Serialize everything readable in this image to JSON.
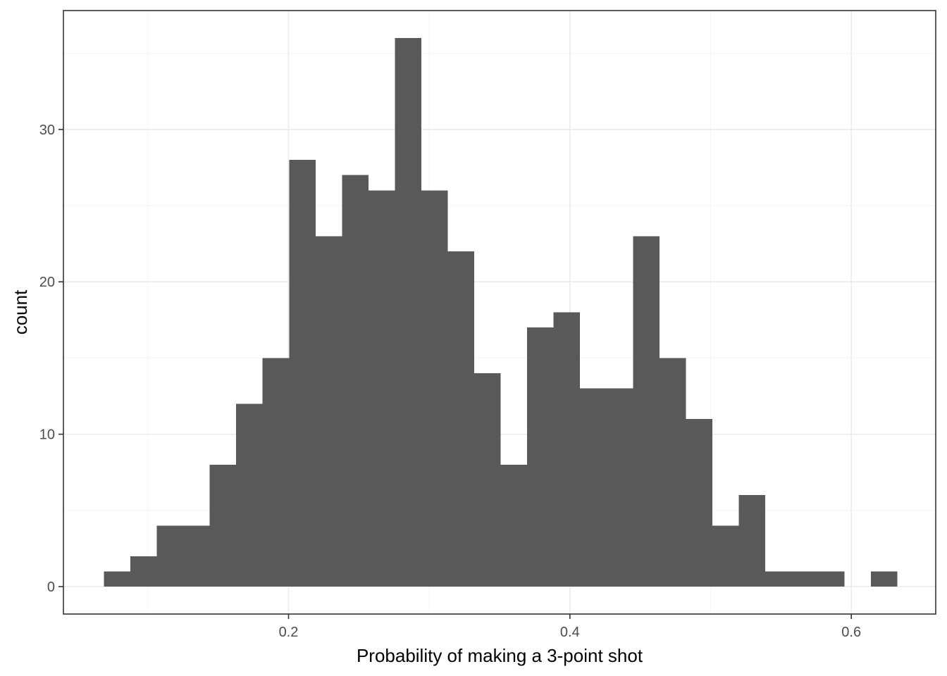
{
  "chart_data": {
    "type": "histogram",
    "title": "",
    "xlabel": "Probability of making a 3-point shot",
    "ylabel": "count",
    "xlim": [
      0.04,
      0.66
    ],
    "ylim": [
      -1.8,
      37.8
    ],
    "x_ticks": [
      {
        "value": 0.2,
        "label": "0.2"
      },
      {
        "value": 0.4,
        "label": "0.4"
      },
      {
        "value": 0.6,
        "label": "0.6"
      }
    ],
    "y_ticks": [
      {
        "value": 0,
        "label": "0"
      },
      {
        "value": 10,
        "label": "10"
      },
      {
        "value": 20,
        "label": "20"
      },
      {
        "value": 30,
        "label": "30"
      }
    ],
    "x_minor_grid": [
      0.1,
      0.3,
      0.5
    ],
    "y_minor_grid": [
      5,
      15,
      25,
      35
    ],
    "grid": true,
    "bin_width": 0.0188,
    "bins": [
      {
        "x0": 0.0688,
        "x1": 0.0876,
        "count": 1
      },
      {
        "x0": 0.0876,
        "x1": 0.1064,
        "count": 2
      },
      {
        "x0": 0.1064,
        "x1": 0.1252,
        "count": 4
      },
      {
        "x0": 0.1252,
        "x1": 0.144,
        "count": 4
      },
      {
        "x0": 0.144,
        "x1": 0.1628,
        "count": 8
      },
      {
        "x0": 0.1628,
        "x1": 0.1816,
        "count": 12
      },
      {
        "x0": 0.1816,
        "x1": 0.2004,
        "count": 15
      },
      {
        "x0": 0.2004,
        "x1": 0.2192,
        "count": 28
      },
      {
        "x0": 0.2192,
        "x1": 0.238,
        "count": 23
      },
      {
        "x0": 0.238,
        "x1": 0.2568,
        "count": 27
      },
      {
        "x0": 0.2568,
        "x1": 0.2756,
        "count": 26
      },
      {
        "x0": 0.2756,
        "x1": 0.2944,
        "count": 36
      },
      {
        "x0": 0.2944,
        "x1": 0.3132,
        "count": 26
      },
      {
        "x0": 0.3132,
        "x1": 0.332,
        "count": 22
      },
      {
        "x0": 0.332,
        "x1": 0.3508,
        "count": 14
      },
      {
        "x0": 0.3508,
        "x1": 0.3696,
        "count": 8
      },
      {
        "x0": 0.3696,
        "x1": 0.3884,
        "count": 17
      },
      {
        "x0": 0.3884,
        "x1": 0.4072,
        "count": 18
      },
      {
        "x0": 0.4072,
        "x1": 0.426,
        "count": 13
      },
      {
        "x0": 0.426,
        "x1": 0.4448,
        "count": 13
      },
      {
        "x0": 0.4448,
        "x1": 0.4636,
        "count": 23
      },
      {
        "x0": 0.4636,
        "x1": 0.4824,
        "count": 15
      },
      {
        "x0": 0.4824,
        "x1": 0.5012,
        "count": 11
      },
      {
        "x0": 0.5012,
        "x1": 0.52,
        "count": 4
      },
      {
        "x0": 0.52,
        "x1": 0.5388,
        "count": 6
      },
      {
        "x0": 0.5388,
        "x1": 0.5576,
        "count": 1
      },
      {
        "x0": 0.5576,
        "x1": 0.5764,
        "count": 1
      },
      {
        "x0": 0.5764,
        "x1": 0.5952,
        "count": 1
      },
      {
        "x0": 0.5952,
        "x1": 0.614,
        "count": 0
      },
      {
        "x0": 0.614,
        "x1": 0.6328,
        "count": 1
      }
    ],
    "colors": {
      "bar_fill": "#595959",
      "panel_background": "#ffffff",
      "panel_border": "#333333",
      "major_grid": "#ebebeb",
      "minor_grid": "#f5f5f5",
      "tick_label": "#4d4d4d",
      "axis_title": "#000000"
    }
  }
}
